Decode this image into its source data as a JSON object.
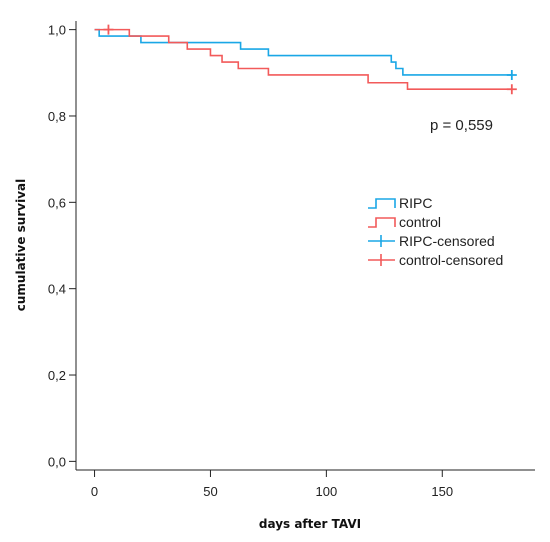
{
  "chart_data": {
    "type": "line",
    "xlabel": "days after TAVI",
    "ylabel": "cumulative survival",
    "xlim": [
      -8,
      190
    ],
    "ylim": [
      -0.02,
      1.02
    ],
    "xticks": [
      0,
      50,
      100,
      150
    ],
    "x_tick_labels": [
      "0",
      "50",
      "100",
      "150"
    ],
    "yticks": [
      0.0,
      0.2,
      0.4,
      0.6,
      0.8,
      1.0
    ],
    "y_tick_labels": [
      "0,0",
      "0,2",
      "0,4",
      "0,6",
      "0,8",
      "1,0"
    ],
    "annotation": "p = 0,559",
    "legend_position": "center-right",
    "series": [
      {
        "name": "RIPC",
        "color": "#1aa7e6",
        "step_points": [
          [
            0,
            1.0
          ],
          [
            2,
            0.985
          ],
          [
            20,
            0.97
          ],
          [
            63,
            0.955
          ],
          [
            75,
            0.94
          ],
          [
            128,
            0.925
          ],
          [
            130,
            0.91
          ],
          [
            133,
            0.895
          ],
          [
            180,
            0.895
          ]
        ],
        "censored": [
          [
            180,
            0.895
          ]
        ]
      },
      {
        "name": "control",
        "color": "#f25a5a",
        "step_points": [
          [
            0,
            1.0
          ],
          [
            15,
            0.985
          ],
          [
            32,
            0.97
          ],
          [
            40,
            0.955
          ],
          [
            50,
            0.94
          ],
          [
            55,
            0.925
          ],
          [
            62,
            0.91
          ],
          [
            75,
            0.895
          ],
          [
            118,
            0.877
          ],
          [
            135,
            0.862
          ],
          [
            180,
            0.862
          ]
        ],
        "censored": [
          [
            6,
            1.0
          ],
          [
            180,
            0.862
          ]
        ]
      }
    ],
    "legend": [
      {
        "label": "RIPC",
        "kind": "line",
        "color": "#1aa7e6"
      },
      {
        "label": "control",
        "kind": "line",
        "color": "#f25a5a"
      },
      {
        "label": "RIPC-censored",
        "kind": "censor",
        "color": "#1aa7e6"
      },
      {
        "label": "control-censored",
        "kind": "censor",
        "color": "#f25a5a"
      }
    ]
  }
}
